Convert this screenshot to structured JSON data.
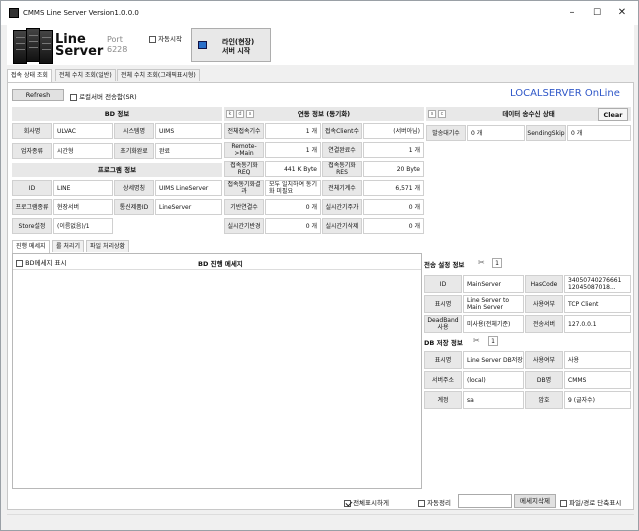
{
  "window": {
    "title": "CMMS Line Server Version1.0.0.0",
    "min": "–",
    "max": "☐",
    "close": "✕"
  },
  "header": {
    "line1": "Line",
    "line2": "Server",
    "port_label": "Port",
    "port_value": "6228",
    "autostart_label": "자동시작",
    "start_btn_line1": "라인(현장)",
    "start_btn_line2": "서버 시작",
    "icons": {
      "app": "server-rack-icon",
      "start": "play-icon"
    }
  },
  "tabs": [
    "접속 상태 조회",
    "전체 수치 조회(일반)",
    "전체 수치 조회(그래픽표시형)"
  ],
  "toolbar": {
    "refresh": "Refresh",
    "local_send": "로컬서버 전송함(SR)",
    "banner": "LOCALSERVER OnLine"
  },
  "bd_info": {
    "title": "BD 정보",
    "rows": [
      {
        "k1": "회사명",
        "v1": "ULVAC",
        "k2": "시스템명",
        "v2": "UIMS"
      },
      {
        "k1": "업자종류",
        "v1": "시간형",
        "k2": "초기화완료",
        "v2": "완료"
      }
    ]
  },
  "program_info": {
    "title": "프로그램 정보",
    "rows": [
      {
        "k1": "ID",
        "v1": "LINE",
        "k2": "상세명칭",
        "v2": "UIMS LineServer"
      },
      {
        "k1": "프로그램종류",
        "v1": "현장서버",
        "k2": "통신제품ID",
        "v2": "LineServer"
      },
      {
        "k1": "Store설정",
        "v1": "(이름없음)/1",
        "k2": "",
        "v2": ""
      }
    ]
  },
  "link_info": {
    "title": "연동 정보 (동기화)",
    "btns": [
      "k",
      "d",
      "s"
    ],
    "rows": [
      {
        "k1": "전체접속기수",
        "v1": "1 개",
        "k2": "접속Client수",
        "v2": "(서버아님)"
      },
      {
        "k1": "Remote->Main",
        "v1": "1 개",
        "k2": "연결완료수",
        "v2": "1 개"
      },
      {
        "k1": "접속동기화REQ",
        "v1": "441 K Byte",
        "k2": "접속동기화RES",
        "v2": "20 Byte"
      },
      {
        "k1": "접속동기화결과",
        "v1": "모두 일치하여 동기화 미필요",
        "k2": "전체기계수",
        "v2": "6,571 개"
      },
      {
        "k1": "기반연결수",
        "v1": "0 개",
        "k2": "실시간기주가",
        "v2": "0 개"
      },
      {
        "k1": "실시간기반경",
        "v1": "0 개",
        "k2": "실시간기삭제",
        "v2": "0 개"
      }
    ]
  },
  "data_status": {
    "title": "데이터 송수신 상태",
    "btns": [
      "s",
      "c"
    ],
    "clear": "Clear",
    "k1": "발송대기수",
    "v1": "0 개",
    "k2": "SendingSkip",
    "v2": "0 개"
  },
  "subtabs": [
    "진행 메세지",
    "룰 처리기",
    "파일 처리상황"
  ],
  "msg": {
    "bd_show": "BD메세지 표시",
    "title": "BD 진행 메세지"
  },
  "send_info": {
    "title": "전송 설정 정보",
    "num": "1",
    "rows": [
      {
        "k1": "ID",
        "v1": "MainServer",
        "k2": "HasCode",
        "v2": "34050740276661 12045087018..."
      },
      {
        "k1": "표시명",
        "v1": "Line Server to Main Server",
        "k2": "사용여부",
        "v2": "TCP Client"
      },
      {
        "k1": "DeadBand 사용",
        "v1": "미사용(전체기준)",
        "k2": "전송서버",
        "v2": "127.0.0.1"
      }
    ]
  },
  "db_info": {
    "title": "DB 저장 정보",
    "num": "1",
    "rows": [
      {
        "k1": "표시명",
        "v1": "Line Server DB저장",
        "k2": "사용여부",
        "v2": "사용"
      },
      {
        "k1": "서버주소",
        "v1": "(local)",
        "k2": "DB명",
        "v2": "CMMS"
      },
      {
        "k1": "계정",
        "v1": "sa",
        "k2": "암호",
        "v2": "9 (글자수)"
      }
    ]
  },
  "footer": {
    "all_show": "전체표시하게",
    "auto_clean": "자동정리",
    "msg_delete": "메세지삭제",
    "file_path": "파일/경로 단축표시"
  }
}
